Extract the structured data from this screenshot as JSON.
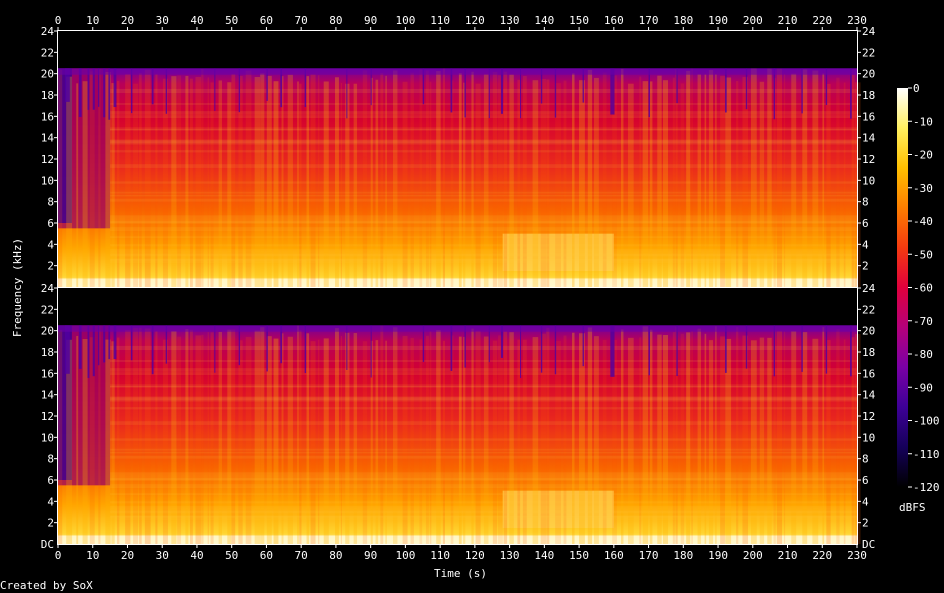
{
  "chart_data": {
    "type": "heatmap",
    "title": "",
    "xlabel": "Time (s)",
    "ylabel": "Frequency (kHz)",
    "credit": "Created by SoX",
    "x_ticks": [
      0,
      10,
      20,
      30,
      40,
      50,
      60,
      70,
      80,
      90,
      100,
      110,
      120,
      130,
      140,
      150,
      160,
      170,
      180,
      190,
      200,
      210,
      220,
      230
    ],
    "xlim": [
      0,
      230
    ],
    "channels": [
      {
        "ylim": [
          0,
          24
        ],
        "y_ticks": [
          "2",
          "4",
          "6",
          "8",
          "10",
          "12",
          "14",
          "16",
          "18",
          "20",
          "22",
          "24"
        ],
        "bottom_label": ""
      },
      {
        "ylim": [
          0,
          24
        ],
        "y_ticks": [
          "2",
          "4",
          "6",
          "8",
          "10",
          "12",
          "14",
          "16",
          "18",
          "20",
          "22",
          "24"
        ],
        "bottom_label": "DC"
      }
    ],
    "content_cutoff_khz": 20.5,
    "colorbar": {
      "label": "dBFS",
      "range": [
        -120,
        0
      ],
      "ticks": [
        "0",
        "-10",
        "-20",
        "-30",
        "-40",
        "-50",
        "-60",
        "-70",
        "-80",
        "-90",
        "-100",
        "-110",
        "-120"
      ]
    },
    "colors": {
      "background": "#000000",
      "axis": "#ffffff",
      "colormap": [
        "#000000",
        "#15005a",
        "#3d0096",
        "#7a00a6",
        "#b4007a",
        "#e0003c",
        "#f53a10",
        "#fd7e00",
        "#ffc000",
        "#fff060",
        "#ffffff"
      ]
    }
  }
}
